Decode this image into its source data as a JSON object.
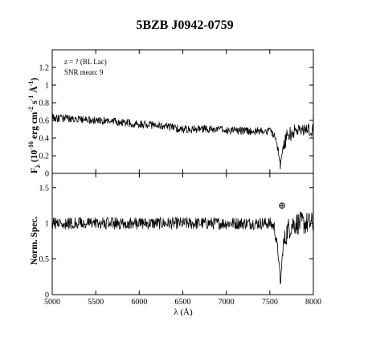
{
  "chart_data": [
    {
      "type": "line",
      "title": "5BZB J0942-0759",
      "ylabel": "Fλ (10⁻¹⁶ erg cm⁻² s⁻¹ Å⁻¹)",
      "ylabel_parts": [
        "F",
        "λ",
        "(10",
        "-16",
        "erg cm",
        "-2",
        "s",
        "-1",
        "Å",
        "-1",
        ")"
      ],
      "annotations": [
        "z = ? (BL Lac)",
        "SNR mean: 9"
      ],
      "xlim": [
        5000,
        8000
      ],
      "ylim": [
        0,
        1.4
      ],
      "yticks": [
        0,
        0.2,
        0.4,
        0.6,
        0.8,
        1,
        1.2
      ],
      "ytick_labels": [
        "0",
        "0.2",
        "0.4",
        "0.6",
        "0.8",
        "1",
        "1.2"
      ],
      "x": [
        5000,
        5250,
        5500,
        5750,
        6000,
        6250,
        6500,
        6750,
        7000,
        7250,
        7500,
        7550,
        7600,
        7620,
        7650,
        7700,
        7750,
        7800,
        7850,
        7900,
        7950,
        8000
      ],
      "y": [
        0.63,
        0.62,
        0.6,
        0.58,
        0.56,
        0.54,
        0.5,
        0.5,
        0.49,
        0.48,
        0.48,
        0.44,
        0.25,
        0.08,
        0.3,
        0.42,
        0.46,
        0.48,
        0.5,
        0.49,
        0.5,
        0.5
      ],
      "grid": false
    },
    {
      "type": "line",
      "xlabel": "λ (Å)",
      "ylabel": "Norm. Spec.",
      "annotations": [
        "⊕"
      ],
      "xlim": [
        5000,
        8000
      ],
      "ylim": [
        0,
        1.7
      ],
      "xticks": [
        5000,
        5500,
        6000,
        6500,
        7000,
        7500,
        8000
      ],
      "xtick_labels": [
        "5000",
        "5500",
        "6000",
        "6500",
        "7000",
        "7500",
        "8000"
      ],
      "yticks": [
        0,
        0.5,
        1,
        1.5
      ],
      "ytick_labels": [
        "0",
        "0.5",
        "1",
        "1.5"
      ],
      "x": [
        5000,
        5500,
        6000,
        6500,
        7000,
        7500,
        7550,
        7600,
        7620,
        7650,
        7700,
        7750,
        7800,
        7850,
        7900,
        7950,
        8000
      ],
      "y": [
        1.0,
        1.0,
        1.0,
        1.0,
        1.0,
        1.0,
        0.95,
        0.55,
        0.12,
        0.65,
        0.9,
        0.98,
        1.0,
        1.0,
        1.0,
        1.0,
        1.0
      ],
      "grid": false
    }
  ]
}
